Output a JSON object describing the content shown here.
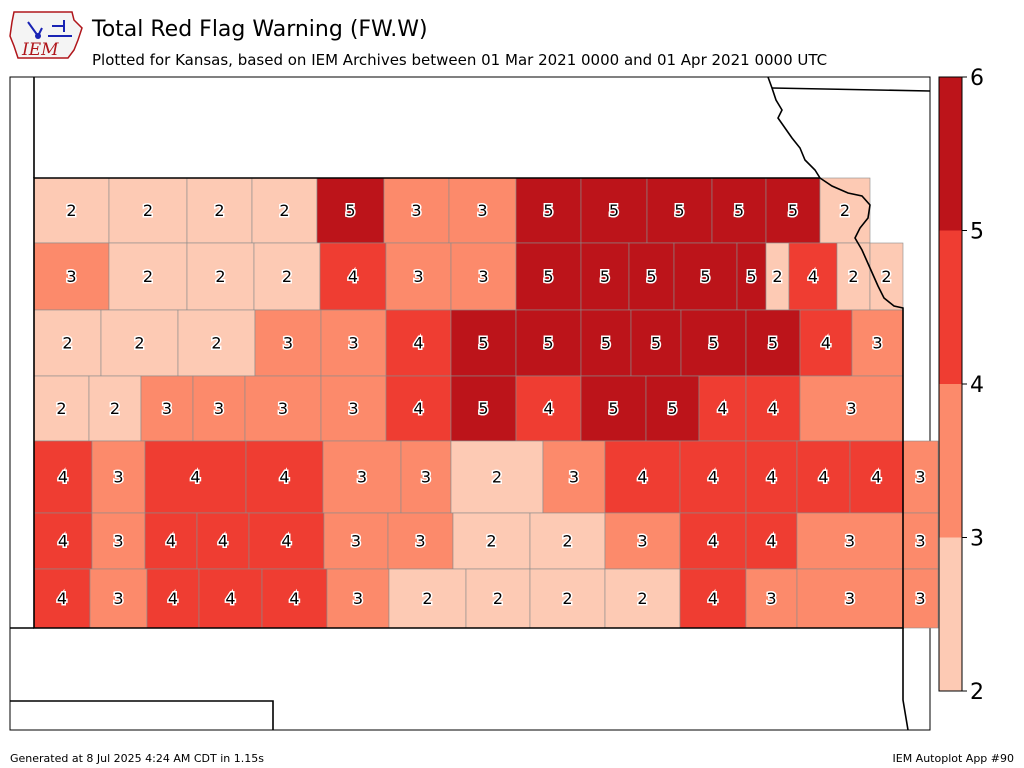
{
  "header": {
    "logo_text": "IEM",
    "title": "Total Red Flag Warning (FW.W)",
    "subtitle": "Plotted for Kansas, based on IEM Archives  between 01 Mar 2021 0000 and 01 Apr 2021 0000 UTC"
  },
  "footer": {
    "generated": "Generated at 8 Jul 2025 4:24 AM CDT in 1.15s",
    "app": "IEM Autoplot App #90"
  },
  "legend": {
    "ticks": [
      "2",
      "3",
      "4",
      "5",
      "6"
    ],
    "bins": [
      {
        "from": 2,
        "to": 3,
        "color": "#fdcab4"
      },
      {
        "from": 3,
        "to": 4,
        "color": "#fc8a6b"
      },
      {
        "from": 4,
        "to": 5,
        "color": "#ef3d32"
      },
      {
        "from": 5,
        "to": 6,
        "color": "#bc141a"
      }
    ]
  },
  "map": {
    "state": "Kansas",
    "county_values": [
      [
        2,
        2,
        2,
        2,
        5,
        3,
        3,
        5,
        5,
        5,
        5,
        5,
        2
      ],
      [
        3,
        2,
        2,
        2,
        4,
        3,
        3,
        5,
        5,
        5,
        5,
        5,
        2,
        4,
        2,
        2
      ],
      [
        2,
        2,
        2,
        3,
        3,
        4,
        5,
        5,
        5,
        5,
        5,
        5,
        4,
        3
      ],
      [
        2,
        2,
        3,
        3,
        3,
        3,
        4,
        5,
        4,
        5,
        5,
        4,
        4,
        3
      ],
      [
        4,
        3,
        4,
        4,
        3,
        3,
        2,
        3,
        4,
        4,
        4,
        4,
        4,
        3
      ],
      [
        4,
        3,
        4,
        4,
        4,
        3,
        3,
        2,
        2,
        3,
        4,
        4,
        3,
        3
      ],
      [
        4,
        3,
        4,
        4,
        4,
        3,
        2,
        2,
        2,
        2,
        4,
        3,
        3,
        3
      ]
    ]
  }
}
